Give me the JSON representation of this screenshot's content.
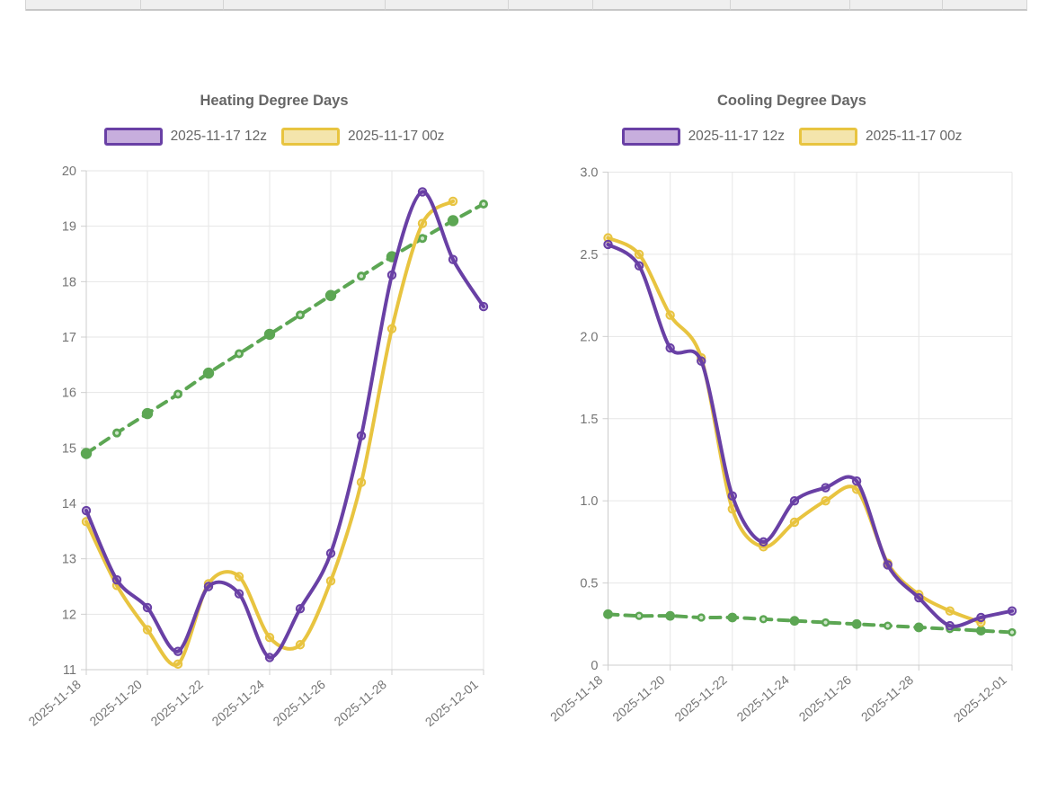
{
  "top_table": {
    "cells": [
      "",
      "",
      "",
      "",
      "",
      "",
      "",
      "",
      ""
    ]
  },
  "chart_data": [
    {
      "type": "line",
      "title": "Heating Degree Days",
      "x": [
        "2025-11-18",
        "2025-11-19",
        "2025-11-20",
        "2025-11-21",
        "2025-11-22",
        "2025-11-23",
        "2025-11-24",
        "2025-11-25",
        "2025-11-26",
        "2025-11-27",
        "2025-11-28",
        "2025-11-29",
        "2025-11-30",
        "2025-12-01"
      ],
      "x_ticks": [
        {
          "index": 0,
          "label": "2025-11-18"
        },
        {
          "index": 2,
          "label": "2025-11-20"
        },
        {
          "index": 4,
          "label": "2025-11-22"
        },
        {
          "index": 6,
          "label": "2025-11-24"
        },
        {
          "index": 8,
          "label": "2025-11-26"
        },
        {
          "index": 10,
          "label": "2025-11-28"
        },
        {
          "index": 13,
          "label": "2025-12-01"
        }
      ],
      "ylim": [
        11,
        20
      ],
      "y_ticks": [
        {
          "value": 20,
          "label": "20"
        },
        {
          "value": 19,
          "label": "19"
        },
        {
          "value": 18,
          "label": "18"
        },
        {
          "value": 17,
          "label": "17"
        },
        {
          "value": 16,
          "label": "16"
        },
        {
          "value": 15,
          "label": "15"
        },
        {
          "value": 14,
          "label": "14"
        },
        {
          "value": 13,
          "label": "13"
        },
        {
          "value": 12,
          "label": "12"
        },
        {
          "value": 11,
          "label": "11"
        }
      ],
      "legend": [
        {
          "label": "2025-11-17 12z",
          "line_color": "#6940a5",
          "fill_color": "#c7aedd"
        },
        {
          "label": "2025-11-17 00z",
          "line_color": "#e8c440",
          "fill_color": "#f4e5ac"
        }
      ],
      "series": [
        {
          "name": "2025-11-17 12z",
          "color": "#6940a5",
          "style": "solid",
          "marker": "ring",
          "values": [
            13.87,
            12.62,
            12.12,
            11.33,
            12.5,
            12.37,
            11.22,
            12.1,
            13.1,
            15.22,
            18.12,
            19.62,
            18.4,
            17.55
          ]
        },
        {
          "name": "2025-11-17 00z",
          "color": "#e8c440",
          "style": "solid",
          "marker": "ring",
          "values": [
            13.67,
            12.52,
            11.72,
            11.1,
            12.55,
            12.68,
            11.58,
            11.45,
            12.6,
            14.38,
            17.15,
            19.05,
            19.45,
            null
          ]
        },
        {
          "name": "",
          "color": "#5ca653",
          "style": "dashed",
          "marker": "dot",
          "values": [
            14.9,
            15.27,
            15.62,
            15.97,
            16.35,
            16.7,
            17.05,
            17.4,
            17.75,
            18.1,
            18.45,
            18.78,
            19.1,
            19.4
          ]
        }
      ],
      "grid": true,
      "legend_position": "top"
    },
    {
      "type": "line",
      "title": "Cooling Degree Days",
      "x": [
        "2025-11-18",
        "2025-11-19",
        "2025-11-20",
        "2025-11-21",
        "2025-11-22",
        "2025-11-23",
        "2025-11-24",
        "2025-11-25",
        "2025-11-26",
        "2025-11-27",
        "2025-11-28",
        "2025-11-29",
        "2025-11-30",
        "2025-12-01"
      ],
      "x_ticks": [
        {
          "index": 0,
          "label": "2025-11-18"
        },
        {
          "index": 2,
          "label": "2025-11-20"
        },
        {
          "index": 4,
          "label": "2025-11-22"
        },
        {
          "index": 6,
          "label": "2025-11-24"
        },
        {
          "index": 8,
          "label": "2025-11-26"
        },
        {
          "index": 10,
          "label": "2025-11-28"
        },
        {
          "index": 13,
          "label": "2025-12-01"
        }
      ],
      "ylim": [
        0,
        3
      ],
      "y_ticks": [
        {
          "value": 3,
          "label": "3.0"
        },
        {
          "value": 2.5,
          "label": "2.5"
        },
        {
          "value": 2,
          "label": "2.0"
        },
        {
          "value": 1.5,
          "label": "1.5"
        },
        {
          "value": 1,
          "label": "1.0"
        },
        {
          "value": 0.5,
          "label": "0.5"
        },
        {
          "value": 0,
          "label": "0"
        }
      ],
      "legend": [
        {
          "label": "2025-11-17 12z",
          "line_color": "#6940a5",
          "fill_color": "#c7aedd"
        },
        {
          "label": "2025-11-17 00z",
          "line_color": "#e8c440",
          "fill_color": "#f4e5ac"
        }
      ],
      "series": [
        {
          "name": "2025-11-17 12z",
          "color": "#6940a5",
          "style": "solid",
          "marker": "ring",
          "values": [
            2.56,
            2.43,
            1.93,
            1.85,
            1.03,
            0.75,
            1.0,
            1.08,
            1.12,
            0.61,
            0.41,
            0.24,
            0.29,
            0.33
          ]
        },
        {
          "name": "2025-11-17 00z",
          "color": "#e8c440",
          "style": "solid",
          "marker": "ring",
          "values": [
            2.6,
            2.5,
            2.13,
            1.87,
            0.95,
            0.72,
            0.87,
            1.0,
            1.07,
            0.62,
            0.43,
            0.33,
            0.26,
            null
          ]
        },
        {
          "name": "",
          "color": "#5ca653",
          "style": "dashed",
          "marker": "dot",
          "values": [
            0.31,
            0.3,
            0.3,
            0.29,
            0.29,
            0.28,
            0.27,
            0.26,
            0.25,
            0.24,
            0.23,
            0.22,
            0.21,
            0.2
          ]
        }
      ],
      "grid": true,
      "legend_position": "top"
    }
  ]
}
